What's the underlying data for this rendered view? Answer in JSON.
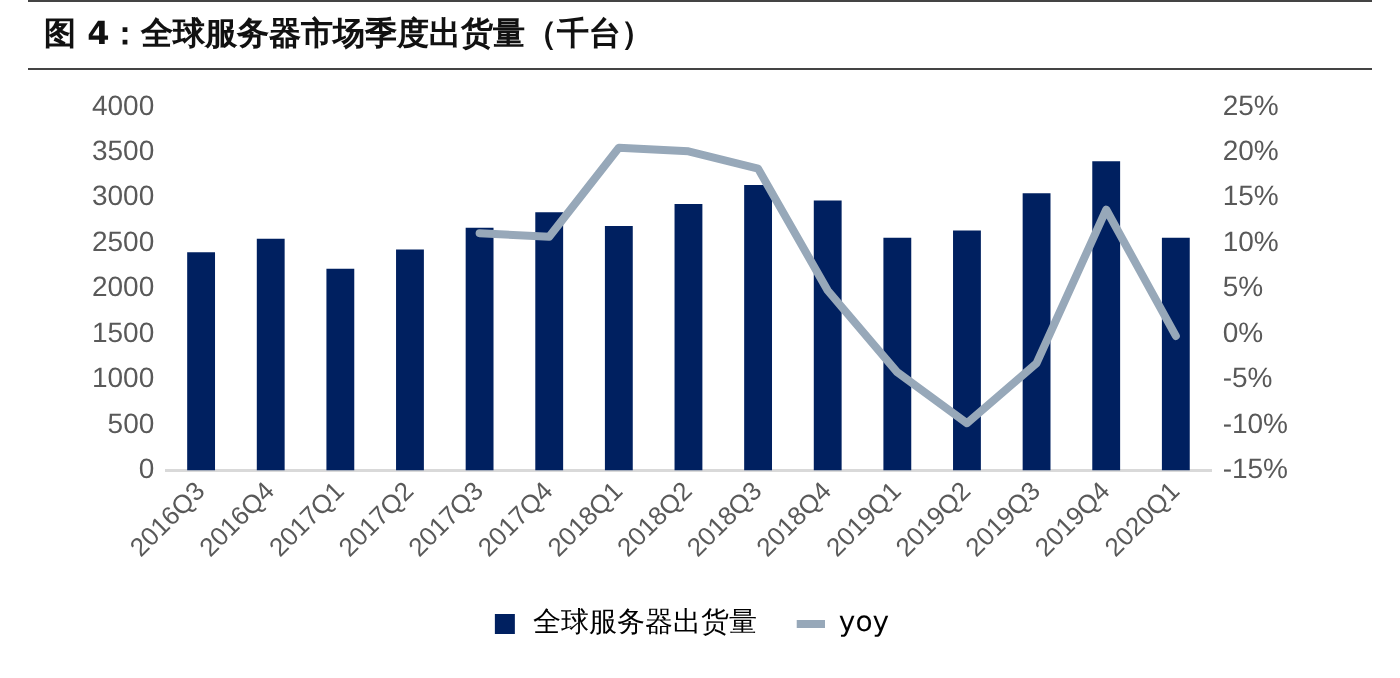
{
  "chart_data": {
    "type": "bar",
    "title": "图 4：全球服务器市场季度出货量（千台）",
    "categories": [
      "2016Q3",
      "2016Q4",
      "2017Q1",
      "2017Q2",
      "2017Q3",
      "2017Q4",
      "2018Q1",
      "2018Q2",
      "2018Q3",
      "2018Q4",
      "2019Q1",
      "2019Q2",
      "2019Q3",
      "2019Q4",
      "2020Q1"
    ],
    "series": [
      {
        "name": "全球服务器出货量",
        "color": "#002060",
        "values": [
          2400,
          2550,
          2220,
          2430,
          2670,
          2840,
          2690,
          2930,
          3140,
          2970,
          2560,
          2640,
          3050,
          3400,
          2560
        ]
      },
      {
        "name": "yoy",
        "type": "line",
        "axis": "y2",
        "color": "#97a8b9",
        "values": [
          null,
          null,
          null,
          null,
          11.1,
          10.7,
          20.5,
          20.1,
          18.2,
          4.8,
          -4.2,
          -9.8,
          -3.2,
          13.7,
          -0.2
        ]
      }
    ],
    "ylim": [
      0,
      4000
    ],
    "yticks": [
      0,
      500,
      1000,
      1500,
      2000,
      2500,
      3000,
      3500,
      4000
    ],
    "y2lim": [
      -15,
      25
    ],
    "y2ticks": [
      {
        "value": -15,
        "label": "-15%"
      },
      {
        "value": -10,
        "label": "-10%"
      },
      {
        "value": -5,
        "label": "-5%"
      },
      {
        "value": 0,
        "label": "0%"
      },
      {
        "value": 5,
        "label": "5%"
      },
      {
        "value": 10,
        "label": "10%"
      },
      {
        "value": 15,
        "label": "15%"
      },
      {
        "value": 20,
        "label": "20%"
      },
      {
        "value": 25,
        "label": "25%"
      }
    ],
    "grid": false,
    "legend": "bottom",
    "marker": "none",
    "line_style": "solid"
  }
}
